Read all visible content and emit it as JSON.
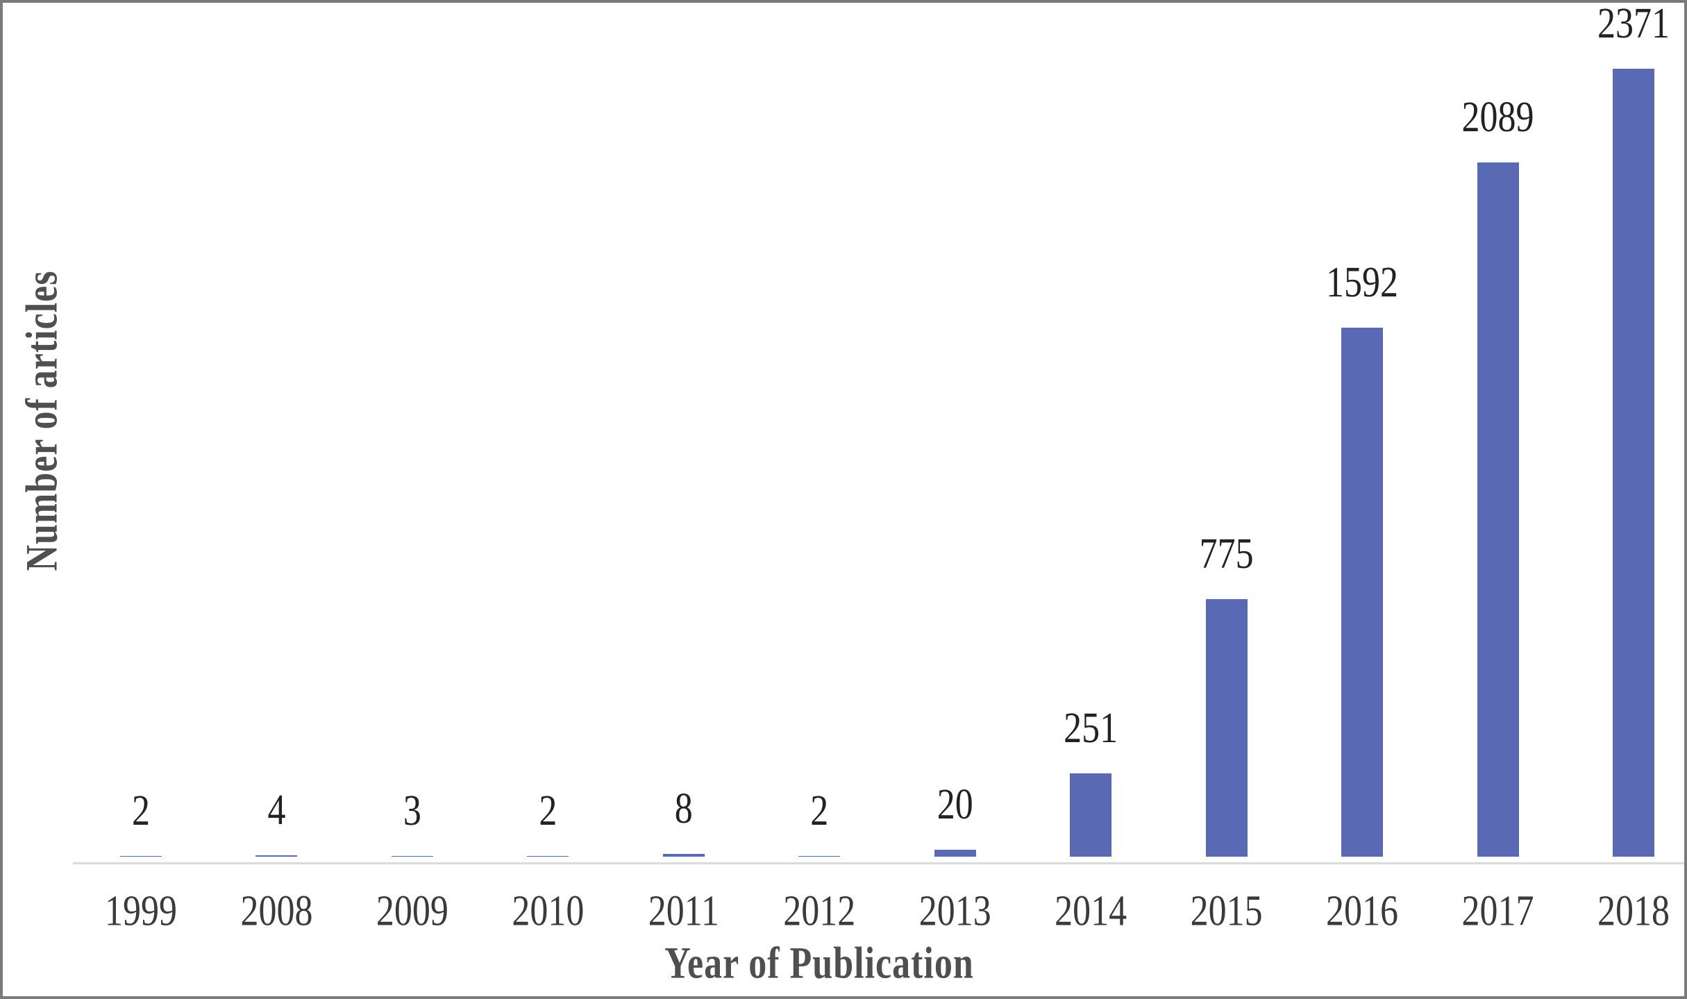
{
  "chart_data": {
    "type": "bar",
    "title": "",
    "xlabel": "Year of Publication",
    "ylabel": "Number of articles",
    "categories": [
      "1999",
      "2008",
      "2009",
      "2010",
      "2011",
      "2012",
      "2013",
      "2014",
      "2015",
      "2016",
      "2017",
      "2018"
    ],
    "values": [
      2,
      4,
      3,
      2,
      8,
      2,
      20,
      251,
      775,
      1592,
      2089,
      2371
    ],
    "data_labels": [
      "2",
      "4",
      "3",
      "2",
      "8",
      "2",
      "20",
      "251",
      "775",
      "1592",
      "2089",
      "2371"
    ],
    "data_label_position": "outside-end",
    "ylim": [
      0,
      2500
    ],
    "grid": false,
    "legend": false,
    "colors": {
      "bar": "#5a69b4",
      "axis_line": "#dbdbdb",
      "value_label": "#222222",
      "tick_label": "#3a3a3a",
      "axis_title": "#4f4f4f",
      "frame": "#7b7b7b",
      "background": "#ffffff"
    }
  }
}
